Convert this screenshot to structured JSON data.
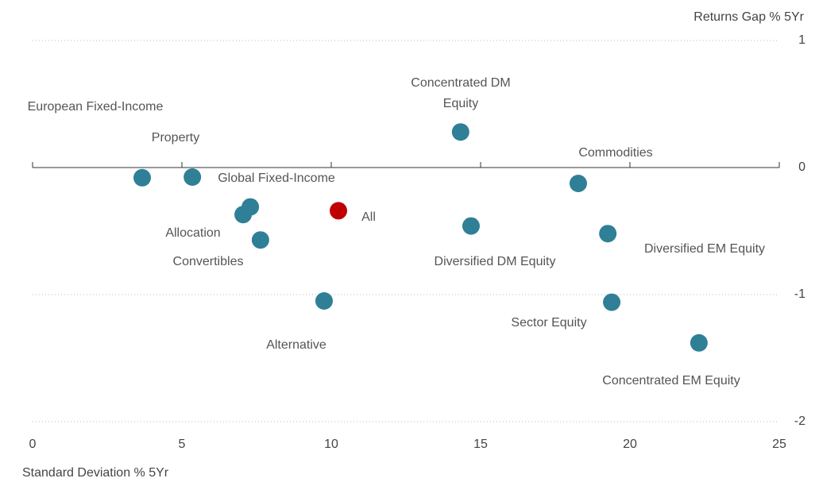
{
  "chart_data": {
    "type": "scatter",
    "y_label": "Returns Gap % 5Yr",
    "x_label": "Standard Deviation % 5Yr",
    "labels": [
      "European Fixed-Income",
      "Property",
      "Global Fixed-Income",
      "Allocation",
      "Convertibles",
      "Alternative",
      "All",
      "Concentrated DM Equity",
      "Diversified DM Equity",
      "Commodities",
      "Diversified EM Equity",
      "Sector Equity",
      "Concentrated EM Equity"
    ],
    "x": [
      3.67,
      5.35,
      7.29,
      7.05,
      7.63,
      9.76,
      10.24,
      14.33,
      14.68,
      18.27,
      19.26,
      19.39,
      22.31
    ],
    "values": [
      -0.08,
      -0.075,
      -0.31,
      -0.37,
      -0.57,
      -1.05,
      -0.34,
      0.28,
      -0.46,
      -0.125,
      -0.52,
      -1.06,
      -1.38
    ],
    "colors": [
      "#2f7f97",
      "#2f7f97",
      "#2f7f97",
      "#2f7f97",
      "#2f7f97",
      "#2f7f97",
      "#c00000",
      "#2f7f97",
      "#2f7f97",
      "#2f7f97",
      "#2f7f97",
      "#2f7f97",
      "#2f7f97"
    ],
    "xlim": [
      0,
      25
    ],
    "ylim": [
      -2,
      1
    ],
    "xticks": [
      0,
      5,
      10,
      15,
      20,
      25
    ],
    "yticks": [
      1,
      0,
      -1,
      -2
    ],
    "grid": true
  }
}
